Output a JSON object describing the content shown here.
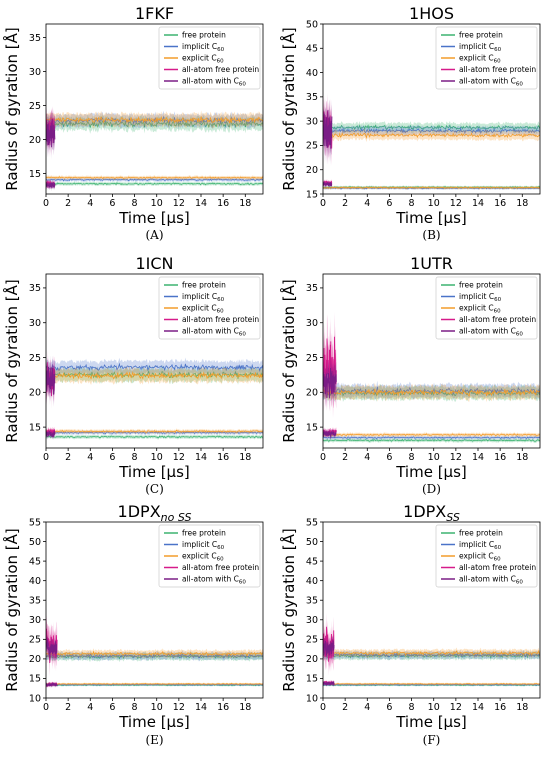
{
  "colors": {
    "free_protein": "#3cb371",
    "implicit_c60": "#4a73c8",
    "explicit_c60": "#f39c2a",
    "allatom_free": "#d61b8a",
    "allatom_c60": "#7a1d86"
  },
  "legend": {
    "free_protein": "free protein",
    "implicit": "implicit C",
    "explicit": "explicit C",
    "allatom_free": "all-atom free protein",
    "allatom_c60": "all-atom with C",
    "c60_sub": "60"
  },
  "axes": {
    "xlabel": "Time [μs]",
    "ylabel": "Radius of gyration [Å]",
    "xticks": [
      "0",
      "2",
      "4",
      "6",
      "8",
      "10",
      "12",
      "14",
      "16",
      "18"
    ]
  },
  "chart_data": [
    {
      "type": "line",
      "label": "(A)",
      "title": "1FKF",
      "title_sub": "",
      "xlim": [
        0,
        19.6
      ],
      "ylim": [
        12,
        37
      ],
      "yticks": [
        15,
        20,
        25,
        30,
        35
      ],
      "series": {
        "free_protein": {
          "high": 22.3,
          "low": 13.5
        },
        "implicit_c60": {
          "high": 22.8,
          "low": 14.1
        },
        "explicit_c60": {
          "high": 22.9,
          "low": 14.4
        },
        "allatom_free": {
          "high": 21.5,
          "low": 13.5,
          "t_end": 0.8
        },
        "allatom_c60": {
          "high": 20.9,
          "low": 13.3,
          "t_end": 0.8
        }
      }
    },
    {
      "type": "line",
      "label": "(B)",
      "title": "1HOS",
      "title_sub": "",
      "xlim": [
        0,
        19.6
      ],
      "ylim": [
        15,
        50
      ],
      "yticks": [
        15,
        20,
        25,
        30,
        35,
        40,
        45,
        50
      ],
      "series": {
        "free_protein": {
          "high": 28.7,
          "low": 16.4
        },
        "implicit_c60": {
          "high": 28.0,
          "low": 16.2
        },
        "explicit_c60": {
          "high": 27.1,
          "low": 16.3
        },
        "allatom_free": {
          "high": 28.5,
          "low": 17.3,
          "t_end": 0.8
        },
        "allatom_c60": {
          "high": 27.7,
          "low": 17.0,
          "t_end": 0.8
        }
      }
    },
    {
      "type": "line",
      "label": "(C)",
      "title": "1ICN",
      "title_sub": "",
      "xlim": [
        0,
        19.6
      ],
      "ylim": [
        12,
        37
      ],
      "yticks": [
        15,
        20,
        25,
        30,
        35
      ],
      "series": {
        "free_protein": {
          "high": 22.5,
          "low": 13.6
        },
        "implicit_c60": {
          "high": 23.6,
          "low": 14.2
        },
        "explicit_c60": {
          "high": 22.4,
          "low": 14.4
        },
        "allatom_free": {
          "high": 22.0,
          "low": 14.3,
          "t_end": 0.8
        },
        "allatom_c60": {
          "high": 21.8,
          "low": 14.0,
          "t_end": 0.8
        }
      }
    },
    {
      "type": "line",
      "label": "(D)",
      "title": "1UTR",
      "title_sub": "",
      "xlim": [
        0,
        19.6
      ],
      "ylim": [
        12,
        37
      ],
      "yticks": [
        15,
        20,
        25,
        30,
        35
      ],
      "series": {
        "free_protein": {
          "high": 19.9,
          "low": 13.1
        },
        "implicit_c60": {
          "high": 20.2,
          "low": 13.5
        },
        "explicit_c60": {
          "high": 20.0,
          "low": 13.9
        },
        "allatom_free": {
          "high": 23.5,
          "low": 14.3,
          "t_end": 1.2
        },
        "allatom_c60": {
          "high": 21.5,
          "low": 14.0,
          "t_end": 1.2
        }
      }
    },
    {
      "type": "line",
      "label": "(E)",
      "title": "1DPX",
      "title_sub": "no SS",
      "xlim": [
        0,
        19.6
      ],
      "ylim": [
        10,
        55
      ],
      "yticks": [
        10,
        15,
        20,
        25,
        30,
        35,
        40,
        45,
        50,
        55
      ],
      "series": {
        "free_protein": {
          "high": 20.6,
          "low": 13.3
        },
        "implicit_c60": {
          "high": 20.8,
          "low": 13.4
        },
        "explicit_c60": {
          "high": 21.3,
          "low": 13.6
        },
        "allatom_free": {
          "high": 24.0,
          "low": 13.5,
          "t_end": 1.0
        },
        "allatom_c60": {
          "high": 22.5,
          "low": 13.4,
          "t_end": 1.0
        }
      }
    },
    {
      "type": "line",
      "label": "(F)",
      "title": "1DPX",
      "title_sub": "SS",
      "xlim": [
        0,
        19.6
      ],
      "ylim": [
        10,
        55
      ],
      "yticks": [
        10,
        15,
        20,
        25,
        30,
        35,
        40,
        45,
        50,
        55
      ],
      "series": {
        "free_protein": {
          "high": 20.8,
          "low": 13.3
        },
        "implicit_c60": {
          "high": 21.0,
          "low": 13.4
        },
        "explicit_c60": {
          "high": 21.5,
          "low": 13.6
        },
        "allatom_free": {
          "high": 23.5,
          "low": 13.9,
          "t_end": 1.0
        },
        "allatom_c60": {
          "high": 22.8,
          "low": 13.7,
          "t_end": 1.0
        }
      }
    }
  ]
}
